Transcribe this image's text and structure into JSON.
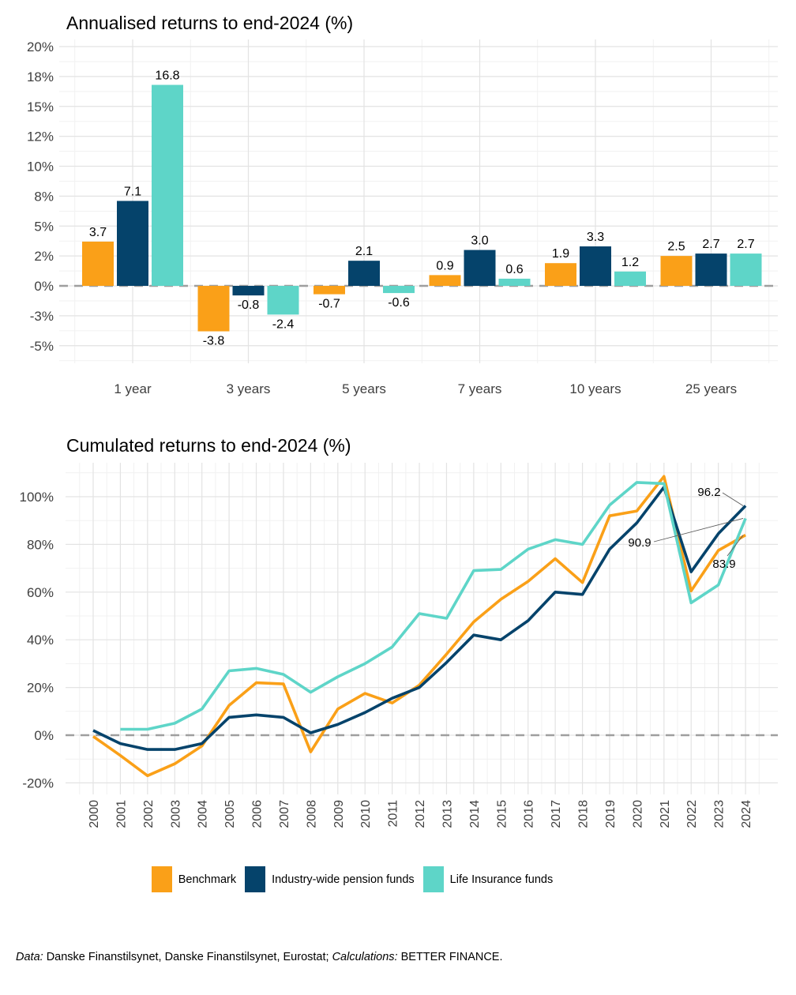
{
  "colors": {
    "benchmark": "#FAA018",
    "pension": "#05436B",
    "life": "#5ED5C8",
    "grid_major": "#E3E3E3",
    "grid_minor": "#F1F1F1",
    "zero_line": "#9E9E9E",
    "axis_text": "#3F3F3F",
    "annotation_line": "#5A5A5A"
  },
  "chart_data": [
    {
      "type": "bar",
      "title": "Annualised returns to end-2024 (%)",
      "categories": [
        "1 year",
        "3 years",
        "5 years",
        "7 years",
        "10 years",
        "25 years"
      ],
      "series": [
        {
          "name": "Benchmark",
          "color": "#FAA018",
          "values": [
            3.7,
            -3.8,
            -0.7,
            0.9,
            1.9,
            2.5
          ]
        },
        {
          "name": "Industry-wide pension funds",
          "color": "#05436B",
          "values": [
            7.1,
            -0.8,
            2.1,
            3.0,
            3.3,
            2.7
          ]
        },
        {
          "name": "Life Insurance funds",
          "color": "#5ED5C8",
          "values": [
            16.8,
            -2.4,
            -0.6,
            0.6,
            1.2,
            2.7
          ]
        }
      ],
      "y_ticks": [
        {
          "label": "20%",
          "value": 20
        },
        {
          "label": "18%",
          "value": 17.5
        },
        {
          "label": "15%",
          "value": 15
        },
        {
          "label": "12%",
          "value": 12.5
        },
        {
          "label": "10%",
          "value": 10
        },
        {
          "label": "8%",
          "value": 7.5
        },
        {
          "label": "5%",
          "value": 5
        },
        {
          "label": "2%",
          "value": 2.5
        },
        {
          "label": "0%",
          "value": 0
        },
        {
          "label": "-3%",
          "value": -2.5
        },
        {
          "label": "-5%",
          "value": -5
        }
      ],
      "xlabel": "",
      "ylabel": "",
      "ylim": [
        -6.8,
        21
      ],
      "grid": true,
      "zero_line_style": "dashed",
      "legend_position": "none"
    },
    {
      "type": "line",
      "title": "Cumulated returns to end-2024 (%)",
      "x": [
        2000,
        2001,
        2002,
        2003,
        2004,
        2005,
        2006,
        2007,
        2008,
        2009,
        2010,
        2011,
        2012,
        2013,
        2014,
        2015,
        2016,
        2017,
        2018,
        2019,
        2020,
        2021,
        2022,
        2023,
        2024
      ],
      "series": [
        {
          "name": "Benchmark",
          "color": "#FAA018",
          "values": [
            -0.5,
            -8.5,
            -17,
            -12,
            -4.5,
            12.5,
            22,
            21.5,
            -7,
            11,
            17.5,
            13.5,
            21,
            34,
            47.5,
            57,
            64.5,
            74,
            64,
            92,
            94,
            108.5,
            60.5,
            77.5,
            83.9
          ]
        },
        {
          "name": "Industry-wide pension funds",
          "color": "#05436B",
          "values": [
            2,
            -3.5,
            -6,
            -6,
            -3.5,
            7.5,
            8.5,
            7.5,
            1,
            4.5,
            9.5,
            15.5,
            20,
            30.5,
            42,
            40,
            48,
            60,
            59,
            78,
            89,
            104,
            68.5,
            84.5,
            96.2
          ]
        },
        {
          "name": "Life Insurance funds",
          "color": "#5ED5C8",
          "values": [
            null,
            2.5,
            2.5,
            5,
            11,
            27,
            28,
            25.5,
            18,
            24.5,
            30,
            37,
            51,
            49,
            69,
            69.5,
            78,
            82,
            80,
            96.5,
            106,
            105.5,
            55.5,
            63,
            90.9
          ]
        }
      ],
      "y_ticks": [
        {
          "label": "100%",
          "value": 100
        },
        {
          "label": "80%",
          "value": 80
        },
        {
          "label": "60%",
          "value": 60
        },
        {
          "label": "40%",
          "value": 40
        },
        {
          "label": "20%",
          "value": 20
        },
        {
          "label": "0%",
          "value": 0
        },
        {
          "label": "-20%",
          "value": -20
        }
      ],
      "xlabel": "",
      "ylabel": "",
      "ylim": [
        -25,
        115
      ],
      "grid": true,
      "zero_line_style": "dashed",
      "annotations": [
        {
          "text": "96.2",
          "series": "Industry-wide pension funds"
        },
        {
          "text": "90.9",
          "series": "Life Insurance funds"
        },
        {
          "text": "83.9",
          "series": "Benchmark"
        }
      ]
    }
  ],
  "legend": {
    "items": [
      {
        "label": "Benchmark",
        "color": "#FAA018"
      },
      {
        "label": "Industry-wide pension funds",
        "color": "#05436B"
      },
      {
        "label": "Life Insurance funds",
        "color": "#5ED5C8"
      }
    ]
  },
  "footer": {
    "data_label": "Data:",
    "sources": " Danske Finanstilsynet, Danske Finanstilsynet, Eurostat; ",
    "calculations_label": "Calculations:",
    "calculations": " BETTER FINANCE."
  }
}
